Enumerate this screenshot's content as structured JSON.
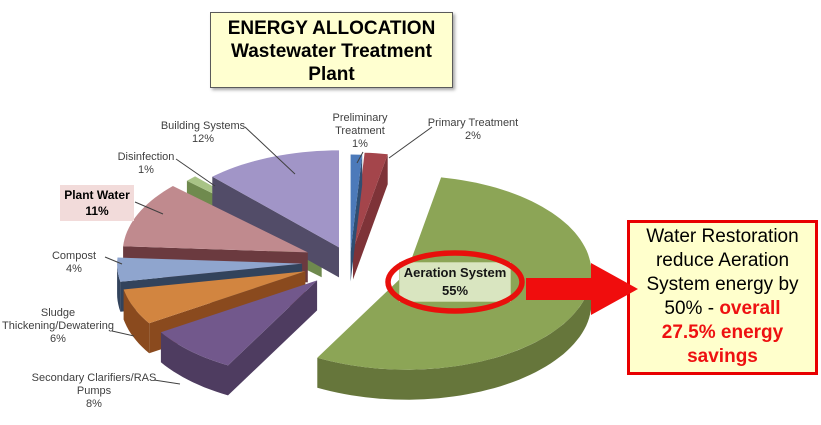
{
  "title": {
    "line1": "ENERGY ALLOCATION",
    "line2": "Wastewater Treatment",
    "line3": "Plant"
  },
  "labels": {
    "building": {
      "line1": "Building Systems",
      "line2": "12%"
    },
    "preliminary": {
      "line1": "Preliminary",
      "line2": "Treatment",
      "line3": "1%"
    },
    "primary": {
      "line1": "Primary Treatment",
      "line2": "2%"
    },
    "disinfection": {
      "line1": "Disinfection",
      "line2": "1%"
    },
    "plant_water": {
      "line1": "Plant Water",
      "line2": "11%"
    },
    "compost": {
      "line1": "Compost",
      "line2": "4%"
    },
    "sludge": {
      "line1": "Sludge",
      "line2": "Thickening/Dewatering",
      "line3": "6%"
    },
    "secondary": {
      "line1": "Secondary Clarifiers/RAS",
      "line2": "Pumps",
      "line3": "8%"
    },
    "aeration": {
      "line1": "Aeration System",
      "line2": "55%"
    }
  },
  "note": {
    "line1": "Water Restoration",
    "line2": "reduce Aeration",
    "line3": "System energy by",
    "line4_black": "50% - ",
    "line4_red": "overall",
    "line5": "27.5% energy",
    "line6": "savings"
  },
  "colors": {
    "highlight_red": "#EE1111",
    "arrow_red": "#F00D0D",
    "ellipse_red": "#E8100C",
    "note_bg": "#FFFFCC",
    "note_border": "#E80000",
    "title_bg": "#FFFFD0",
    "plant_water_label_bg": "#F2DBDA",
    "aeration_label_bg": "#D9E5C0"
  },
  "chart_data": {
    "type": "pie",
    "style": "3d-exploded",
    "unit": "%",
    "start_angle_deg": 0,
    "direction": "clockwise",
    "slices": [
      {
        "label": "Preliminary Treatment",
        "value": 1,
        "color": "#4C7ABA",
        "side": "#2F4E72",
        "explode": 20
      },
      {
        "label": "Primary Treatment",
        "value": 2,
        "color": "#A4454B",
        "side": "#7E3338",
        "explode": 24
      },
      {
        "label": "Aeration System",
        "value": 55,
        "color": "#8CA556",
        "side": "#66763B",
        "explode": 60
      },
      {
        "label": "Secondary Clarifiers/RAS Pumps",
        "value": 8,
        "color": "#72588C",
        "side": "#4E3C60",
        "explode": 48
      },
      {
        "label": "Sludge Thickening/Dewatering",
        "value": 6,
        "color": "#D28540",
        "side": "#8A4A1E",
        "explode": 48
      },
      {
        "label": "Compost",
        "value": 4,
        "color": "#8FA5CE",
        "side": "#32435C",
        "explode": 48
      },
      {
        "label": "Plant Water",
        "value": 11,
        "color": "#C08A8E",
        "side": "#6B3A3F",
        "explode": 46
      },
      {
        "label": "Disinfection",
        "value": 1,
        "color": "#A8C386",
        "side": "#6F8A4E",
        "explode": 40
      },
      {
        "label": "Building Systems",
        "value": 12,
        "color": "#A195C7",
        "side": "#524C68",
        "explode": 30
      }
    ]
  }
}
